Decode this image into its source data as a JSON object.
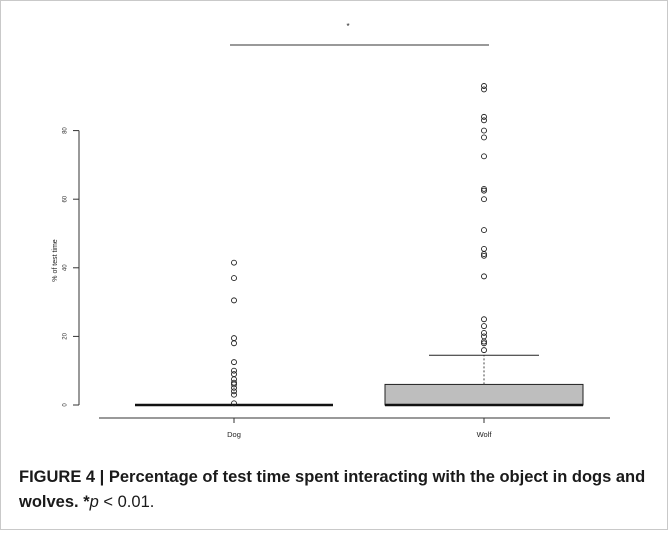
{
  "chart_data": {
    "type": "box",
    "categories": [
      "Dog",
      "Wolf"
    ],
    "ylabel": "% of test time",
    "xlabel": "",
    "title": "",
    "ylim": [
      0,
      93
    ],
    "yticks": [
      0,
      20,
      40,
      60,
      80
    ],
    "boxes": [
      {
        "category": "Dog",
        "q1": 0,
        "median": 0,
        "q3": 0,
        "whisker_low": 0,
        "whisker_high": 0,
        "outliers": [
          41.5,
          37,
          30.5,
          19.5,
          18,
          12.5,
          10,
          9,
          7.5,
          6.5,
          6,
          5,
          4,
          3,
          0.5
        ]
      },
      {
        "category": "Wolf",
        "q1": 0,
        "median": 0,
        "q3": 6,
        "whisker_low": 0,
        "whisker_high": 14.5,
        "outliers": [
          93,
          92,
          84,
          83,
          80,
          78,
          72.5,
          63,
          62.5,
          60,
          51,
          45.5,
          44,
          43.5,
          37.5,
          25,
          23,
          21,
          20,
          18.5,
          18,
          16
        ]
      }
    ],
    "significance": {
      "symbol": "*",
      "between": [
        "Dog",
        "Wolf"
      ]
    },
    "box_fill": "#bebebe",
    "grid": false
  },
  "caption": {
    "label": "FIGURE 4 | Percentage of test time spent interacting with the object in dogs and wolves.",
    "sig_prefix": "*",
    "sig_var": "p",
    "sig_rest": " < 0.01."
  }
}
